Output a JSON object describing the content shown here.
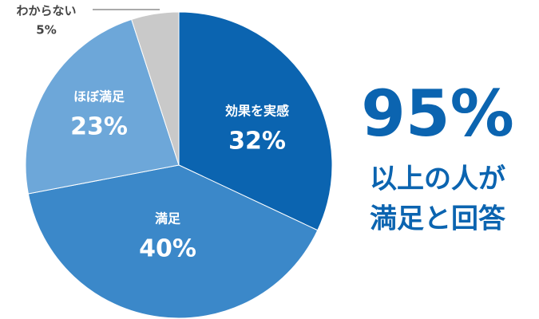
{
  "chart_data": {
    "type": "pie",
    "categories": [
      "効果を実感",
      "満足",
      "ほぼ満足",
      "わからない"
    ],
    "values": [
      32,
      40,
      23,
      5
    ],
    "value_labels": [
      "32%",
      "40%",
      "23%",
      "5%"
    ],
    "colors": [
      "#0b64b0",
      "#3b88c9",
      "#6da7d9",
      "#c9c9c9"
    ],
    "headline": "95%",
    "headline_lines": [
      "以上の人が",
      "満足と回答"
    ]
  }
}
